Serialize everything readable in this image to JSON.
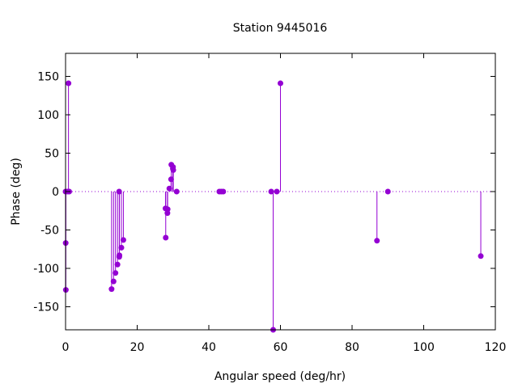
{
  "chart_data": {
    "type": "scatter",
    "title": "Station 9445016",
    "xlabel": "Angular speed (deg/hr)",
    "ylabel": "Phase (deg)",
    "xlim": [
      0,
      120
    ],
    "ylim": [
      -180,
      180
    ],
    "xticks": [
      0,
      20,
      40,
      60,
      80,
      100,
      120
    ],
    "yticks": [
      -150,
      -100,
      -50,
      0,
      50,
      100,
      150
    ],
    "grid": false,
    "zero_line": "dotted",
    "impulses": true,
    "marker_color": "#9400d3",
    "series": [
      {
        "points": [
          [
            0.0,
            0
          ],
          [
            0.04,
            -67
          ],
          [
            0.08,
            -128
          ],
          [
            0.54,
            0
          ],
          [
            0.82,
            141
          ],
          [
            1.02,
            0
          ],
          [
            12.85,
            -127
          ],
          [
            13.4,
            -117
          ],
          [
            13.94,
            -106
          ],
          [
            14.5,
            -95
          ],
          [
            14.96,
            0
          ],
          [
            15.0,
            -85
          ],
          [
            15.04,
            -83
          ],
          [
            15.59,
            -73
          ],
          [
            16.14,
            -63
          ],
          [
            27.9,
            -22
          ],
          [
            27.97,
            -60
          ],
          [
            28.44,
            -28
          ],
          [
            28.51,
            -23
          ],
          [
            28.98,
            4
          ],
          [
            29.46,
            16
          ],
          [
            29.53,
            35
          ],
          [
            29.96,
            30
          ],
          [
            30.0,
            32
          ],
          [
            30.08,
            28
          ],
          [
            31.02,
            0
          ],
          [
            42.93,
            0
          ],
          [
            43.48,
            0
          ],
          [
            44.03,
            0
          ],
          [
            57.42,
            0
          ],
          [
            57.97,
            -180
          ],
          [
            58.98,
            0
          ],
          [
            60.0,
            141
          ],
          [
            86.95,
            -64
          ],
          [
            90.0,
            0
          ],
          [
            115.94,
            -84
          ]
        ]
      }
    ]
  }
}
